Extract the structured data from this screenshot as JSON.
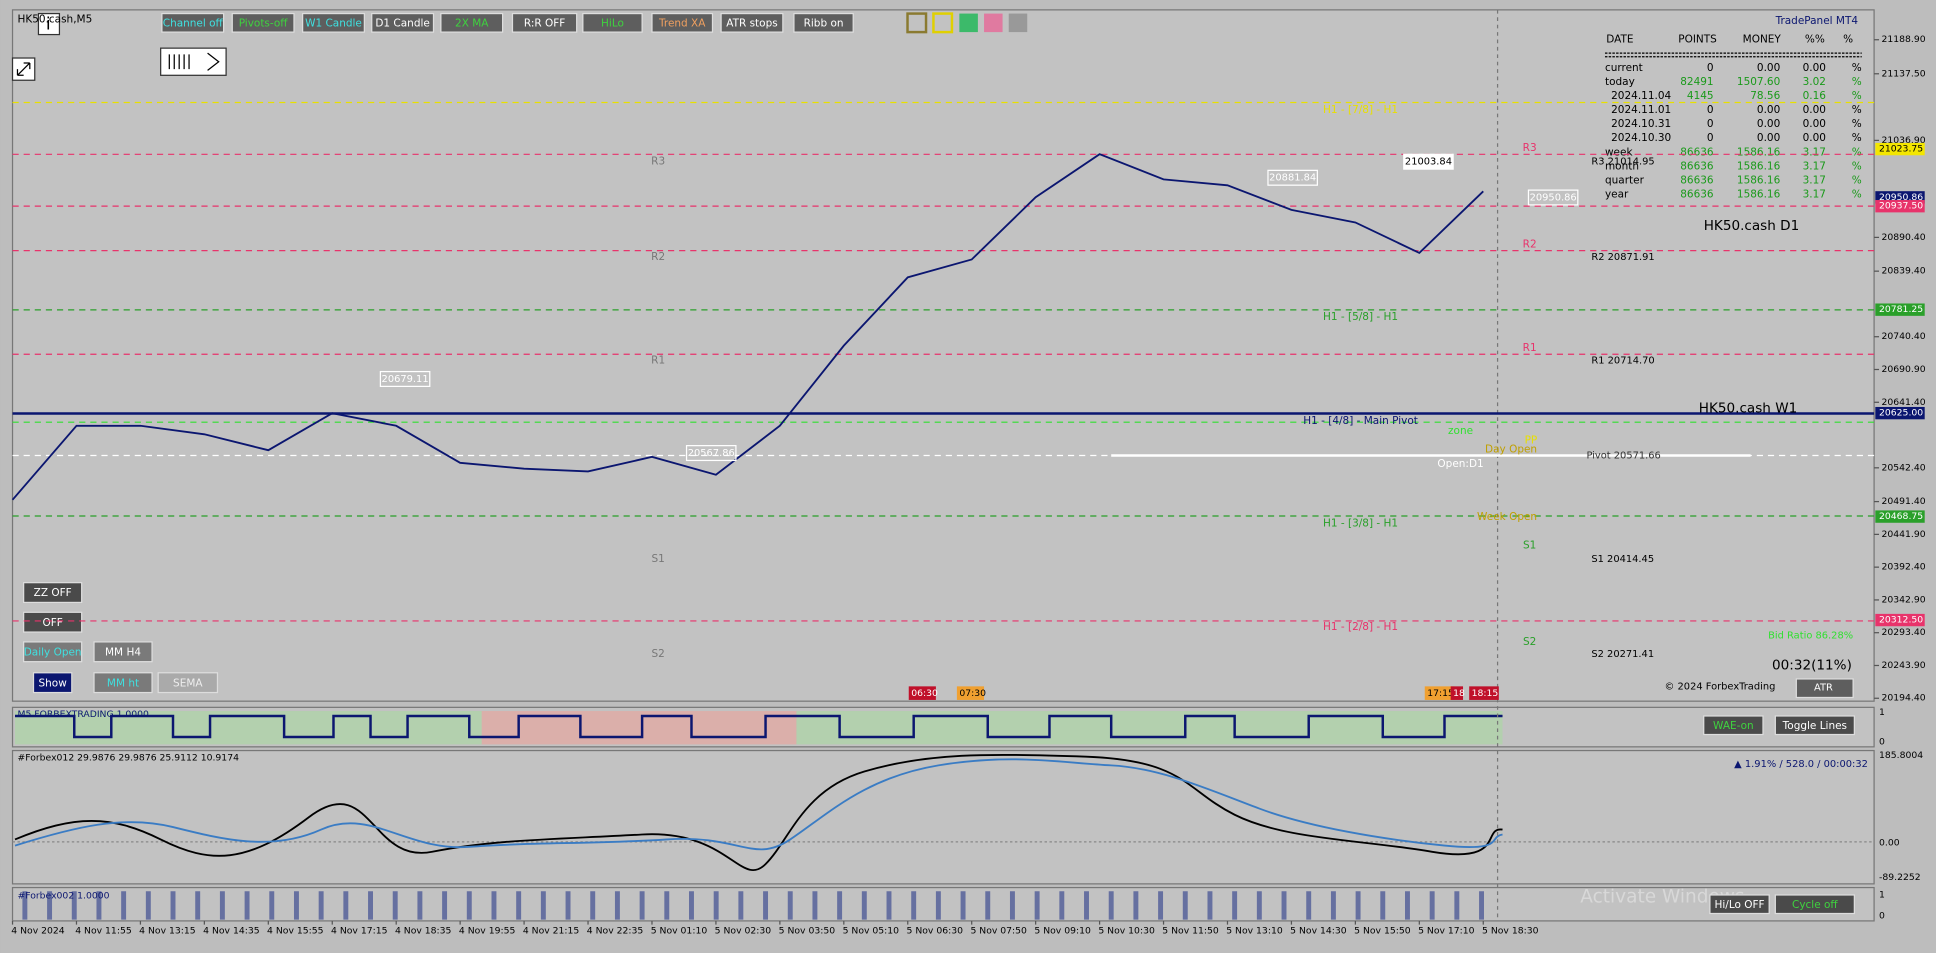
{
  "header": {
    "symbol": "HK50.cash,M5",
    "info_icon": "i"
  },
  "toolbar": [
    "Channel off",
    "Pivots-off",
    "W1 Candle",
    "D1 Candle",
    "2X MA",
    "R:R OFF",
    "HiLo",
    "Trend XA",
    "ATR stops",
    "Ribb on"
  ],
  "side_buttons": [
    "ZZ OFF",
    "OFF",
    "Daily Open",
    "MM H4",
    "Show",
    "MM ht",
    "SEMA"
  ],
  "trade_panel": {
    "title": "TradePanel MT4",
    "columns": [
      "DATE",
      "POINTS",
      "MONEY",
      "%%",
      "%"
    ],
    "rows": [
      [
        "current",
        "0",
        "0.00",
        "0.00",
        "%"
      ],
      [
        "today",
        "82491",
        "1507.60",
        "3.02",
        "%"
      ],
      [
        "2024.11.04",
        "4145",
        "78.56",
        "0.16",
        "%"
      ],
      [
        "2024.11.01",
        "0",
        "0.00",
        "0.00",
        "%"
      ],
      [
        "2024.10.31",
        "0",
        "0.00",
        "0.00",
        "%"
      ],
      [
        "2024.10.30",
        "0",
        "0.00",
        "0.00",
        "%"
      ],
      [
        "week",
        "86636",
        "1586.16",
        "3.17",
        "%"
      ],
      [
        "month",
        "86636",
        "1586.16",
        "3.17",
        "%"
      ],
      [
        "quarter",
        "86636",
        "1586.16",
        "3.17",
        "%"
      ],
      [
        "year",
        "86636",
        "1586.16",
        "3.17",
        "%"
      ]
    ]
  },
  "chart_data": {
    "type": "line",
    "categories": [
      "4 Nov 2024",
      "4 Nov 11:55",
      "4 Nov 13:15",
      "4 Nov 14:35",
      "4 Nov 15:55",
      "4 Nov 17:15",
      "4 Nov 18:35",
      "4 Nov 19:55",
      "4 Nov 21:15",
      "4 Nov 22:35",
      "5 Nov 01:10",
      "5 Nov 02:30",
      "5 Nov 03:50",
      "5 Nov 05:10",
      "5 Nov 06:30",
      "5 Nov 07:50",
      "5 Nov 09:10",
      "5 Nov 10:30",
      "5 Nov 11:50",
      "5 Nov 13:10",
      "5 Nov 14:30",
      "5 Nov 15:50",
      "5 Nov 17:10",
      "5 Nov 18:30"
    ],
    "values": [
      20494,
      20606,
      20606,
      20593,
      20569,
      20625,
      20606,
      20550,
      20541,
      20537,
      20559,
      20532,
      20606,
      20727,
      20830,
      20857,
      20951,
      21016,
      20978,
      20969,
      20932,
      20913,
      20867,
      20960
    ],
    "color": "#0b1670",
    "ylim": [
      20190,
      21234
    ],
    "yticks": [
      {
        "value": 21188.9,
        "label": "21188.90"
      },
      {
        "value": 21137.5,
        "label": "21137.50"
      },
      {
        "value": 21036.9,
        "label": "21036.90"
      },
      {
        "value": 20890.4,
        "label": "20890.40"
      },
      {
        "value": 20839.4,
        "label": "20839.40"
      },
      {
        "value": 20740.4,
        "label": "20740.40"
      },
      {
        "value": 20690.9,
        "label": "20690.90"
      },
      {
        "value": 20641.4,
        "label": "20641.40"
      },
      {
        "value": 20542.4,
        "label": "20542.40"
      },
      {
        "value": 20491.4,
        "label": "20491.40"
      },
      {
        "value": 20441.9,
        "label": "20441.90"
      },
      {
        "value": 20392.4,
        "label": "20392.40"
      },
      {
        "value": 20342.9,
        "label": "20342.90"
      },
      {
        "value": 20293.4,
        "label": "20293.40"
      },
      {
        "value": 20243.9,
        "label": "20243.90"
      },
      {
        "value": 20194.4,
        "label": "20194.40"
      }
    ],
    "price_tags": [
      {
        "value": 21023.75,
        "label": "21023.75",
        "color": "#f3e600"
      },
      {
        "value": 20950.86,
        "label": "20950.86",
        "color": "#0b1670"
      },
      {
        "value": 20937.5,
        "label": "20937.50",
        "color": "#e8336b"
      },
      {
        "value": 20781.25,
        "label": "20781.25",
        "color": "#2aa02a"
      },
      {
        "value": 20625,
        "label": "20625.00",
        "color": "#0b1670"
      },
      {
        "value": 20468.75,
        "label": "20468.75",
        "color": "#2aa02a"
      },
      {
        "value": 20312.5,
        "label": "20312.50",
        "color": "#e8336b"
      }
    ]
  },
  "levels": [
    "H1 - [7/8] - H1",
    "R3",
    "R2",
    "H1 - [5/8] - H1",
    "R1",
    "H1 - [4/8] - Main Pivot",
    "zone",
    "PP",
    "Day Open",
    "Open:D1",
    "Week Open",
    "H1 - [3/8] - H1",
    "S1",
    "H1 - [2/8] - H1",
    "S2",
    "R3",
    "R2",
    "R1",
    "S1",
    "S2"
  ],
  "price_boxes": [
    "20679.11",
    "20567.86",
    "20881.84",
    "21003.84",
    "20950.86"
  ],
  "time_tags": [
    "06:30",
    "07:30",
    "17:15",
    "18",
    "18:15"
  ],
  "side_info": [
    "R3 21014.95",
    "R2 20871.91",
    "R1 20714.70",
    "Pivot 20571.66",
    "S1 20414.45",
    "S2 20271.41",
    "HK50.cash D1",
    "HK50.cash W1",
    "Bid Ratio 86.28%",
    "00:32(11%)",
    "© 2024 ForbexTrading",
    "ATR"
  ],
  "indicator1": {
    "title": "M5 FORBEXTRADING 1.0000",
    "axis": [
      "1",
      "0"
    ],
    "buttons": [
      "WAE-on",
      "Toggle Lines"
    ]
  },
  "indicator2": {
    "title": "#Forbex012 29.9876 29.9876 25.9112 10.9174",
    "status": "▲ 1.91% / 528.0 / 00:00:32",
    "axis": [
      "185.8004",
      "0.00",
      "-89.2252"
    ]
  },
  "indicator3": {
    "title": "#Forbex002 1.0000",
    "axis": [
      "1",
      "0"
    ],
    "buttons": [
      "Hi/Lo OFF",
      "Cycle off"
    ],
    "watermark": "Activate Windows"
  }
}
